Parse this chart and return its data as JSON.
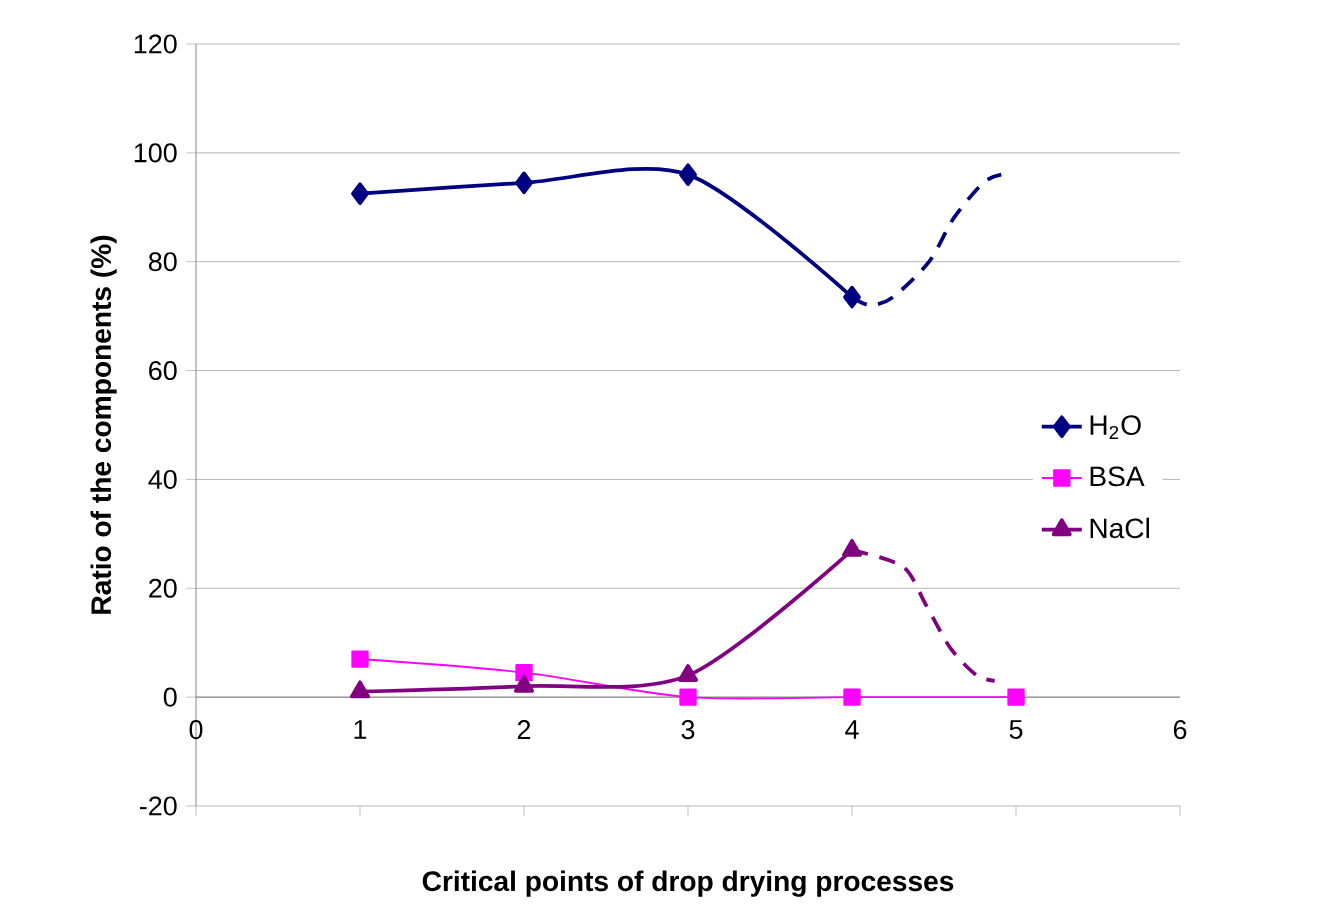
{
  "chart_data": {
    "type": "line",
    "xlabel": "Critical points of drop drying processes",
    "ylabel": "Ratio of the components (%)",
    "xlim": [
      0,
      6
    ],
    "xticks": [
      0,
      1,
      2,
      3,
      4,
      5,
      6
    ],
    "ylim": [
      -20,
      120
    ],
    "yticks": [
      -20,
      0,
      20,
      40,
      60,
      80,
      100,
      120
    ],
    "grid": "y",
    "legend": "right",
    "series": [
      {
        "name": "H$_{2}$O",
        "color": "#000080",
        "marker": "diamond",
        "x": [
          1,
          2,
          3,
          4
        ],
        "values": [
          92.5,
          94.5,
          96,
          73.5
        ]
      },
      {
        "name": "BSA",
        "color": "#ff00ff",
        "marker": "square",
        "x": [
          1,
          2,
          3,
          4,
          5
        ],
        "values": [
          7,
          4.5,
          0,
          0,
          0
        ]
      },
      {
        "name": "NaCl",
        "color": "#800080",
        "marker": "triangle",
        "x": [
          1,
          2,
          3,
          4
        ],
        "values": [
          1,
          2,
          4,
          27
        ]
      },
      {
        "color": "#000080",
        "marker": "none",
        "line_style": "dashed",
        "x": [
          4,
          4.11,
          4.25,
          4.47,
          4.62,
          4.8,
          4.91
        ],
        "values": [
          73.5,
          72,
          73.5,
          80,
          88,
          94.5,
          96
        ]
      },
      {
        "color": "#800080",
        "marker": "none",
        "line_style": "dashed",
        "x": [
          4,
          4.31,
          4.45,
          4.6,
          4.76,
          4.87
        ],
        "values": [
          27,
          24,
          17,
          9,
          4,
          3
        ]
      }
    ]
  }
}
